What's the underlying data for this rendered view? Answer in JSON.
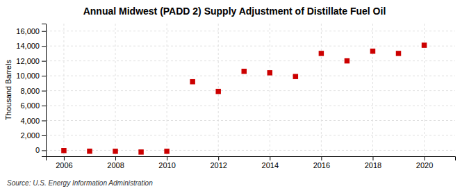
{
  "chart_data": {
    "type": "scatter",
    "title": "Annual Midwest (PADD 2) Supply Adjustment of Distillate Fuel Oil",
    "ylabel": "Thousand Barrels",
    "annotations": [
      "Source: U.S. Energy Information Administration"
    ],
    "x": [
      2006,
      2007,
      2008,
      2009,
      2010,
      2011,
      2012,
      2013,
      2014,
      2015,
      2016,
      2017,
      2018,
      2019,
      2020
    ],
    "values": [
      -30,
      -120,
      -130,
      -230,
      -130,
      9200,
      7900,
      10600,
      10400,
      9900,
      13000,
      12000,
      13300,
      13000,
      14100
    ],
    "color": "#cc0000",
    "marker": "square",
    "xlim": [
      2005.3,
      2021.2
    ],
    "xticks": [
      2006,
      2008,
      2010,
      2012,
      2014,
      2016,
      2018,
      2020
    ],
    "ylim": [
      -800,
      17000
    ],
    "yticks": [
      0,
      {
        "value": 2000,
        "label": "2,000"
      },
      {
        "value": 4000,
        "label": "4,000"
      },
      {
        "value": 6000,
        "label": "6,000"
      },
      {
        "value": 8000,
        "label": "8,000"
      },
      {
        "value": 10000,
        "label": "10,000"
      },
      {
        "value": 12000,
        "label": "12,000"
      },
      {
        "value": 14000,
        "label": "14,000"
      },
      {
        "value": 16000,
        "label": "16,000"
      }
    ],
    "grid": true
  }
}
